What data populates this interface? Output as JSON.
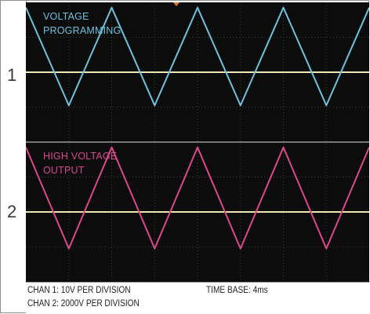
{
  "chart_data": {
    "type": "line",
    "channels": [
      {
        "number": "1",
        "label_lines": [
          "VOLTAGE",
          "PROGRAMMING"
        ],
        "color": "#6ec1dd",
        "waveform": "triangle",
        "points": [
          [
            0,
            1.85
          ],
          [
            1,
            -0.95
          ],
          [
            2,
            1.85
          ],
          [
            3,
            -0.95
          ],
          [
            4,
            1.85
          ],
          [
            5,
            -0.95
          ],
          [
            6,
            1.85
          ],
          [
            7,
            -0.95
          ],
          [
            8,
            1.85
          ]
        ]
      },
      {
        "number": "2",
        "label_lines": [
          "HIGH VOLTAGE",
          "OUTPUT"
        ],
        "color": "#d9488a",
        "waveform": "triangle",
        "points": [
          [
            0,
            1.85
          ],
          [
            1,
            -1.05
          ],
          [
            2,
            1.85
          ],
          [
            3,
            -1.05
          ],
          [
            4,
            1.85
          ],
          [
            5,
            -1.05
          ],
          [
            6,
            1.85
          ],
          [
            7,
            -1.05
          ],
          [
            8,
            1.85
          ]
        ]
      }
    ],
    "x_divisions": 8,
    "y_divisions_per_channel": 4,
    "baseline_color": "#efe6b8",
    "grid": true,
    "background": "#0c0c0c",
    "trigger_marker_color": "#e07a2a"
  },
  "footer": {
    "chan1": "CHAN 1: 10V PER DIVISION",
    "chan2": "CHAN 2: 2000V PER DIVISION",
    "timebase": "TIME BASE: 4ms"
  }
}
